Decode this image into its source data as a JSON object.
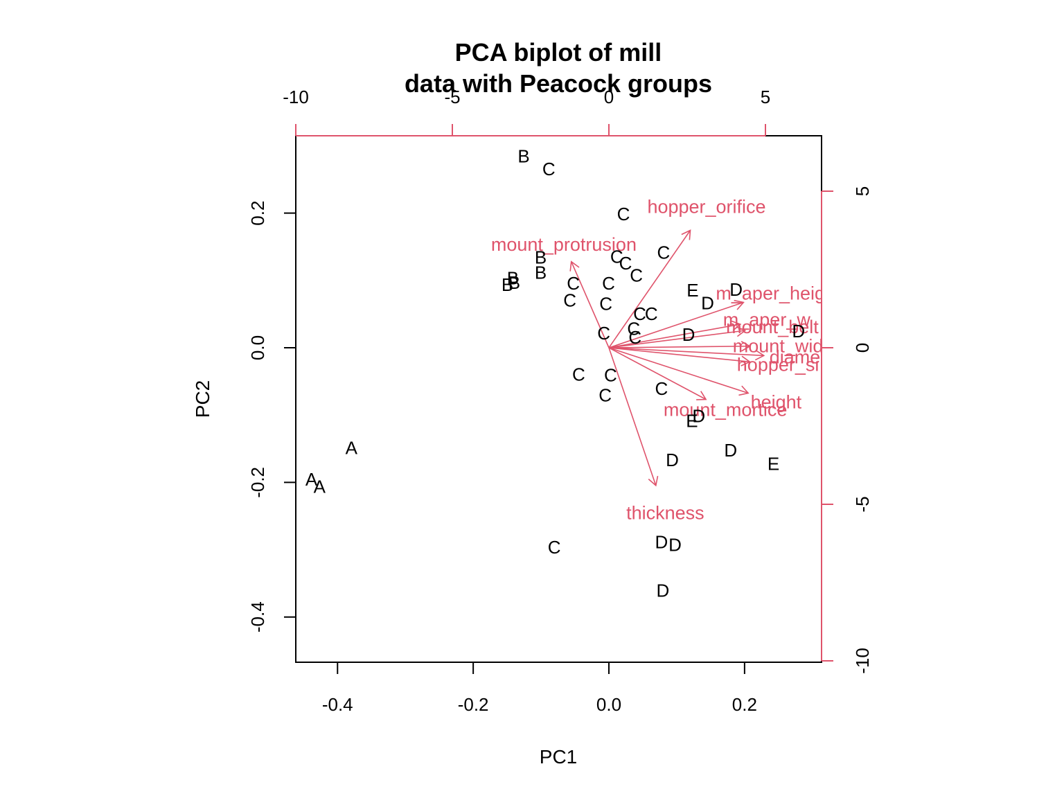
{
  "chart_data": {
    "type": "scatter",
    "title": [
      "PCA biplot of mill",
      "data with Peacock groups"
    ],
    "xlabel": "PC1",
    "ylabel": "PC2",
    "xlim": [
      -0.46,
      0.315
    ],
    "ylim": [
      -0.467,
      0.315
    ],
    "x_ticks": [
      -0.4,
      -0.2,
      0.0,
      0.2
    ],
    "y_ticks": [
      -0.4,
      -0.2,
      0.0,
      0.2
    ],
    "x_tick_labels": [
      "-0.4",
      "-0.2",
      "0.0",
      "0.2"
    ],
    "y_tick_labels": [
      "-0.4",
      "-0.2",
      "0.0",
      "0.2"
    ],
    "secondary_axis_color": "#DF536B",
    "secondary_x_ticks": [
      -10,
      -5,
      0,
      5
    ],
    "secondary_x_tick_labels": [
      "-10",
      "-5",
      "0",
      "5"
    ],
    "secondary_y_ticks": [
      -10,
      -5,
      0,
      5
    ],
    "secondary_y_tick_labels": [
      "-10",
      "-5",
      "0",
      "5"
    ],
    "secondary_lim": [
      -10,
      6.85
    ],
    "grid": false,
    "point_color": "#000000",
    "observations": [
      {
        "label": "A",
        "x": -0.4385,
        "y": -0.1955
      },
      {
        "label": "A",
        "x": -0.4265,
        "y": -0.2065
      },
      {
        "label": "A",
        "x": -0.3795,
        "y": -0.1485
      },
      {
        "label": "B",
        "x": -0.1255,
        "y": 0.2845
      },
      {
        "label": "B",
        "x": -0.1005,
        "y": 0.1345
      },
      {
        "label": "B",
        "x": -0.1005,
        "y": 0.1115
      },
      {
        "label": "B",
        "x": -0.1415,
        "y": 0.1035
      },
      {
        "label": "B",
        "x": -0.1395,
        "y": 0.0965
      },
      {
        "label": "B",
        "x": -0.1495,
        "y": 0.0935
      },
      {
        "label": "C",
        "x": -0.0885,
        "y": 0.2655
      },
      {
        "label": "C",
        "x": 0.0215,
        "y": 0.1985
      },
      {
        "label": "C",
        "x": 0.0805,
        "y": 0.1415
      },
      {
        "label": "C",
        "x": 0.0115,
        "y": 0.1355
      },
      {
        "label": "C",
        "x": 0.0245,
        "y": 0.1255
      },
      {
        "label": "C",
        "x": 0.0405,
        "y": 0.1075
      },
      {
        "label": "C",
        "x": -0.0525,
        "y": 0.0955
      },
      {
        "label": "C",
        "x": -0.0005,
        "y": 0.0955
      },
      {
        "label": "C",
        "x": -0.0575,
        "y": 0.0705
      },
      {
        "label": "C",
        "x": -0.0045,
        "y": 0.0655
      },
      {
        "label": "C",
        "x": 0.0455,
        "y": 0.0505
      },
      {
        "label": "C",
        "x": 0.0625,
        "y": 0.0505
      },
      {
        "label": "C",
        "x": 0.0365,
        "y": 0.0285
      },
      {
        "label": "C",
        "x": -0.0075,
        "y": 0.0215
      },
      {
        "label": "C",
        "x": 0.0385,
        "y": 0.0155
      },
      {
        "label": "C",
        "x": -0.0445,
        "y": -0.0395
      },
      {
        "label": "C",
        "x": 0.0025,
        "y": -0.0405
      },
      {
        "label": "C",
        "x": -0.0055,
        "y": -0.0705
      },
      {
        "label": "C",
        "x": 0.0775,
        "y": -0.0605
      },
      {
        "label": "C",
        "x": -0.0805,
        "y": -0.2965
      },
      {
        "label": "D",
        "x": 0.1875,
        "y": 0.0865
      },
      {
        "label": "D",
        "x": 0.1455,
        "y": 0.0665
      },
      {
        "label": "D",
        "x": 0.1175,
        "y": 0.0195
      },
      {
        "label": "D",
        "x": 0.2795,
        "y": 0.0245
      },
      {
        "label": "D",
        "x": 0.1325,
        "y": -0.1015
      },
      {
        "label": "D",
        "x": 0.1795,
        "y": -0.1525
      },
      {
        "label": "D",
        "x": 0.0935,
        "y": -0.1665
      },
      {
        "label": "D",
        "x": 0.0775,
        "y": -0.2885
      },
      {
        "label": "D",
        "x": 0.0975,
        "y": -0.2925
      },
      {
        "label": "D",
        "x": 0.0795,
        "y": -0.3605
      },
      {
        "label": "E",
        "x": 0.1235,
        "y": 0.0855
      },
      {
        "label": "E",
        "x": 0.1225,
        "y": -0.1085
      },
      {
        "label": "E",
        "x": 0.2425,
        "y": -0.1725
      }
    ],
    "loadings": [
      {
        "name": "hopper_orifice",
        "x": 2.6,
        "y": 3.75
      },
      {
        "name": "mount_protrusion",
        "x": -1.2,
        "y": 2.75
      },
      {
        "name": "m_aper_height",
        "x": 4.3,
        "y": 1.45
      },
      {
        "name": "m_aper_w",
        "x": 4.2,
        "y": 0.75
      },
      {
        "name": "mount_belt",
        "x": 4.35,
        "y": 0.55
      },
      {
        "name": "mount_width",
        "x": 4.5,
        "y": 0.05
      },
      {
        "name": "diameter",
        "x": 4.95,
        "y": -0.25
      },
      {
        "name": "hopper_size",
        "x": 4.5,
        "y": -0.45
      },
      {
        "name": "height",
        "x": 4.45,
        "y": -1.45
      },
      {
        "name": "mount_mortice",
        "x": 3.1,
        "y": -1.65
      },
      {
        "name": "thickness",
        "x": 1.5,
        "y": -4.4
      }
    ],
    "loading_label_texts": [
      "hopper_orifice",
      "mount_protrusion",
      "m_aper_heig",
      "m_aper_w",
      "mount_belt",
      "mount_wid",
      "diame",
      "hopper_si",
      "height",
      "mount_mortice",
      "thickness"
    ]
  }
}
